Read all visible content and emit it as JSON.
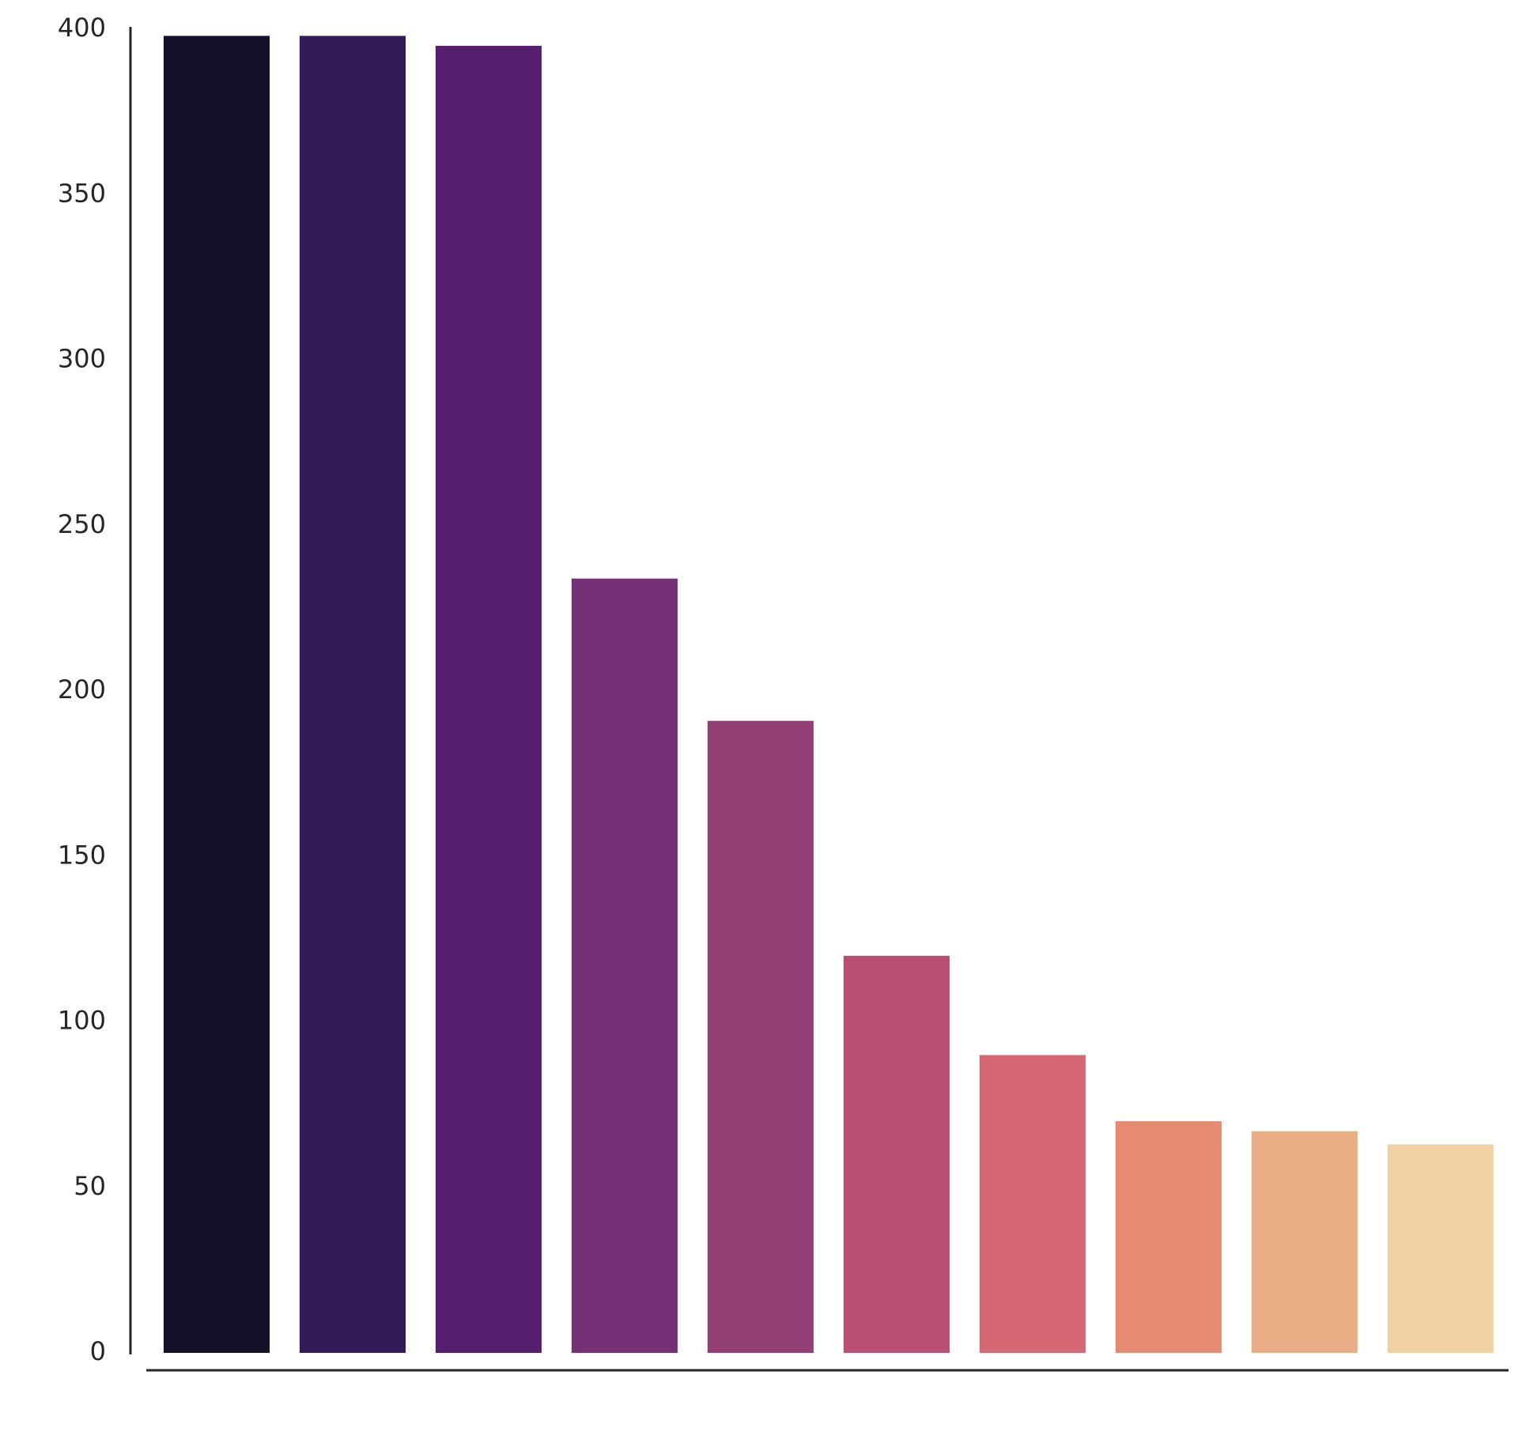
{
  "chart_data": {
    "type": "bar",
    "categories": [
      null,
      null,
      null,
      null,
      null,
      null,
      null,
      null,
      null,
      null
    ],
    "values": [
      398,
      398,
      395,
      234,
      191,
      120,
      90,
      70,
      67,
      63
    ],
    "colors": [
      "#161129",
      "#351a59",
      "#56206f",
      "#743176",
      "#923f75",
      "#b95073",
      "#d56872",
      "#e68a71",
      "#ebad85",
      "#f1d0a3"
    ],
    "ylim": [
      0,
      400
    ],
    "yticks": [
      0,
      50,
      100,
      150,
      200,
      250,
      300,
      350,
      400
    ],
    "grid": false
  }
}
